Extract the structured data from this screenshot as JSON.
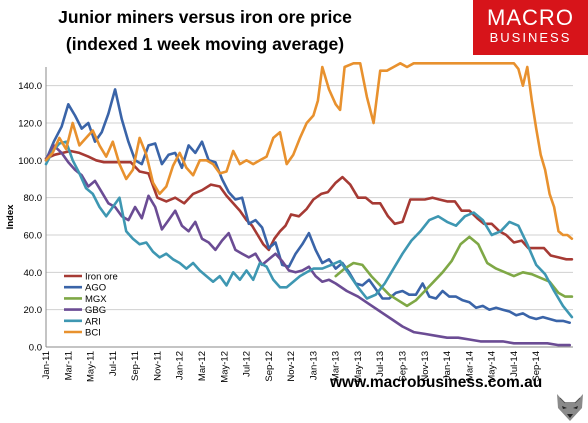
{
  "header": {
    "title_line1": "Junior miners versus iron ore price",
    "title_line2": " (indexed 1 week moving average)"
  },
  "logo": {
    "line1": "MACRO",
    "line2": "BUSINESS",
    "color": "#d7141a"
  },
  "footer": {
    "url": "www.macrobusiness.com.au"
  },
  "chart_data": {
    "type": "line",
    "title": "Junior miners versus iron ore price (indexed 1 week moving average)",
    "xlabel": "",
    "ylabel": "Index",
    "ylim": [
      0,
      150
    ],
    "yticks": [
      0,
      20,
      40,
      60,
      80,
      100,
      120,
      140
    ],
    "ytick_labels": [
      "0.0",
      "20.0",
      "40.0",
      "60.0",
      "80.0",
      "100.0",
      "120.0",
      "140.0"
    ],
    "xlim": [
      0,
      47.3
    ],
    "xticks": [
      0,
      2,
      4,
      6,
      8,
      10,
      12,
      14,
      16,
      18,
      20,
      22,
      24,
      26,
      28,
      30,
      32,
      34,
      36,
      38,
      40,
      42,
      44
    ],
    "xtick_labels": [
      "Jan-11",
      "Mar-11",
      "May-11",
      "Jul-11",
      "Sep-11",
      "Nov-11",
      "Jan-12",
      "Mar-12",
      "May-12",
      "Jul-12",
      "Sep-12",
      "Nov-12",
      "Jan-13",
      "Mar-13",
      "May-13",
      "Jul-13",
      "Sep-13",
      "Nov-13",
      "Jan-14",
      "Mar-14",
      "May-14",
      "Jul-14",
      "Sep-14"
    ],
    "grid": "horizontal",
    "legend_position": "lower-left",
    "series": [
      {
        "name": "Iron ore",
        "color": "#a63a34",
        "x": [
          0,
          0.8,
          1.5,
          2.2,
          3,
          3.8,
          4.5,
          5.2,
          6,
          6.8,
          7.6,
          8.4,
          9.2,
          10,
          10.8,
          11.6,
          12.4,
          13.2,
          14,
          14.8,
          15.6,
          16.2,
          16.8,
          17.4,
          18,
          18.5,
          19,
          19.5,
          20,
          20.5,
          21,
          21.5,
          22,
          22.7,
          23.4,
          24,
          24.7,
          25.3,
          26,
          26.6,
          27.3,
          28,
          28.7,
          29.3,
          30,
          30.7,
          31.3,
          32,
          32.7,
          33.3,
          34,
          34.7,
          35.3,
          36,
          36.7,
          37.3,
          38,
          38.7,
          39.3,
          40,
          40.7,
          41.3,
          42,
          42.7,
          43.3,
          44,
          44.7,
          45.3,
          46,
          46.7,
          47.2
        ],
        "y": [
          101,
          103,
          104,
          105,
          104,
          102,
          100,
          99,
          99,
          99,
          99,
          94,
          93,
          80,
          78,
          80,
          77,
          82,
          84,
          87,
          86,
          81,
          77,
          73,
          68,
          65,
          60,
          55,
          52,
          58,
          62,
          65,
          71,
          70,
          74,
          79,
          82,
          83,
          88,
          91,
          87,
          80,
          80,
          77,
          77,
          70,
          66,
          67,
          79,
          79,
          79,
          80,
          79,
          78,
          78,
          73,
          73,
          69,
          66,
          66,
          62,
          60,
          56,
          57,
          53,
          53,
          53,
          49,
          48,
          47,
          47
        ]
      },
      {
        "name": "AGO",
        "color": "#3a64a8",
        "x": [
          0,
          0.7,
          1.4,
          2,
          2.6,
          3.2,
          3.8,
          4.4,
          5,
          5.6,
          6.2,
          6.8,
          7.4,
          8,
          8.6,
          9.2,
          9.8,
          10.4,
          11,
          11.6,
          12.2,
          12.8,
          13.4,
          14,
          14.6,
          15.2,
          15.8,
          16.4,
          17,
          17.6,
          18.2,
          18.8,
          19.4,
          20,
          20.6,
          21.2,
          21.8,
          22.4,
          23,
          23.6,
          24.2,
          24.8,
          25.4,
          26,
          26.6,
          27.2,
          27.8,
          28.4,
          29,
          29.6,
          30.2,
          30.8,
          31.4,
          32,
          32.6,
          33.2,
          33.8,
          34.4,
          35,
          35.6,
          36.2,
          36.8,
          37.4,
          38,
          38.6,
          39.2,
          39.8,
          40.4,
          41,
          41.6,
          42.2,
          42.8,
          43.4,
          44,
          44.6,
          45.2,
          45.8,
          46.4,
          47
        ],
        "y": [
          100,
          110,
          118,
          130,
          124,
          117,
          120,
          110,
          115,
          125,
          138,
          122,
          110,
          100,
          98,
          108,
          109,
          98,
          103,
          104,
          96,
          108,
          104,
          110,
          100,
          99,
          90,
          83,
          79,
          80,
          66,
          68,
          64,
          53,
          56,
          44,
          43,
          50,
          55,
          61,
          52,
          45,
          47,
          42,
          45,
          40,
          34,
          33,
          36,
          31,
          26,
          26,
          29,
          30,
          28,
          28,
          34,
          27,
          26,
          30,
          27,
          27,
          25,
          24,
          21,
          22,
          20,
          21,
          20,
          19,
          17,
          18,
          16,
          15,
          16,
          15,
          14,
          14,
          13
        ]
      },
      {
        "name": "MGX",
        "color": "#7fa846",
        "x": [
          26,
          26.8,
          27.6,
          28.4,
          29.2,
          30,
          30.8,
          31.6,
          32.4,
          33.2,
          34,
          34.8,
          35.6,
          36.4,
          37.2,
          38,
          38.8,
          39.6,
          40.4,
          41.2,
          42,
          42.8,
          43.6,
          44.4,
          45.2,
          46,
          46.6,
          47.2
        ],
        "y": [
          38,
          42,
          45,
          44,
          38,
          33,
          28,
          25,
          22,
          25,
          30,
          35,
          40,
          46,
          55,
          59,
          55,
          45,
          42,
          40,
          38,
          40,
          39,
          37,
          35,
          29,
          27,
          27
        ]
      },
      {
        "name": "GBG",
        "color": "#6b4c94",
        "x": [
          0,
          0.7,
          1.4,
          2,
          2.6,
          3.2,
          3.8,
          4.4,
          5,
          5.6,
          6.2,
          6.8,
          7.4,
          8,
          8.6,
          9.2,
          9.8,
          10.4,
          11,
          11.6,
          12.2,
          12.8,
          13.4,
          14,
          14.6,
          15.2,
          15.8,
          16.4,
          17,
          17.6,
          18.2,
          18.8,
          19.4,
          20,
          20.6,
          21.2,
          21.8,
          22.4,
          23,
          23.6,
          24.2,
          24.8,
          25.4,
          26,
          27,
          28,
          29,
          30,
          31,
          32,
          33,
          34,
          35,
          36,
          37,
          38,
          39,
          40,
          41,
          42,
          43,
          44,
          45,
          46,
          47
        ],
        "y": [
          100,
          108,
          104,
          99,
          95,
          92,
          86,
          89,
          83,
          77,
          75,
          70,
          68,
          75,
          69,
          81,
          75,
          63,
          68,
          73,
          65,
          62,
          67,
          58,
          56,
          52,
          57,
          61,
          52,
          50,
          48,
          50,
          44,
          47,
          50,
          46,
          41,
          40,
          41,
          43,
          38,
          35,
          36,
          34,
          30,
          27,
          23,
          19,
          15,
          11,
          8,
          7,
          6,
          5,
          5,
          4,
          3,
          3,
          3,
          2,
          2,
          2,
          2,
          1,
          1
        ]
      },
      {
        "name": "ARI",
        "color": "#3e97b2",
        "x": [
          0,
          0.6,
          1.2,
          1.8,
          2.4,
          3,
          3.6,
          4.2,
          4.8,
          5.4,
          6,
          6.6,
          7.2,
          7.8,
          8.4,
          9,
          9.6,
          10.2,
          10.8,
          11.4,
          12,
          12.6,
          13.2,
          13.8,
          14.4,
          15,
          15.6,
          16.2,
          16.8,
          17.4,
          18,
          18.6,
          19.2,
          19.8,
          20.4,
          21,
          21.6,
          22.2,
          22.8,
          23.4,
          24,
          24.8,
          25.6,
          26.4,
          27.2,
          28,
          28.8,
          29.6,
          30.4,
          31.2,
          32,
          32.8,
          33.6,
          34.4,
          35.2,
          36,
          36.8,
          37.6,
          38.4,
          39.2,
          40,
          40.8,
          41.6,
          42.4,
          43.2,
          44,
          44.8,
          45.6,
          46.4,
          47.2
        ],
        "y": [
          98,
          105,
          109,
          110,
          100,
          93,
          85,
          82,
          75,
          70,
          75,
          80,
          62,
          58,
          55,
          56,
          51,
          48,
          50,
          47,
          45,
          42,
          45,
          41,
          38,
          35,
          38,
          33,
          40,
          36,
          41,
          36,
          45,
          43,
          36,
          32,
          32,
          35,
          38,
          40,
          42,
          42,
          44,
          46,
          39,
          32,
          26,
          28,
          34,
          42,
          50,
          57,
          62,
          68,
          70,
          67,
          65,
          70,
          72,
          68,
          60,
          62,
          67,
          65,
          55,
          44,
          39,
          30,
          22,
          16
        ]
      },
      {
        "name": "BCI",
        "color": "#e8912e",
        "x": [
          0,
          0.6,
          1.2,
          1.8,
          2.4,
          3,
          3.6,
          4.2,
          4.8,
          5.4,
          6,
          6.6,
          7.2,
          7.8,
          8.4,
          9,
          9.6,
          10.2,
          10.8,
          11.4,
          12,
          12.6,
          13.2,
          13.8,
          14.4,
          15,
          15.6,
          16.2,
          16.8,
          17.4,
          18,
          18.6,
          19.2,
          19.8,
          20.4,
          21,
          21.6,
          22.2,
          22.8,
          23.4,
          24,
          24.4,
          24.8,
          25.4,
          26,
          26.4,
          26.8,
          27.6,
          28.2,
          28.8,
          29.4,
          30,
          30.6,
          31.2,
          31.8,
          32.4,
          33,
          33.6,
          34.2,
          34.8,
          35.4,
          36,
          36.6,
          37.2,
          37.8,
          38.4,
          39,
          39.6,
          40.2,
          40.8,
          41.4,
          42,
          42.4,
          42.8,
          43.2,
          43.6,
          44,
          44.4,
          44.8,
          45.2,
          45.6,
          46,
          46.4,
          46.8,
          47.2
        ],
        "y": [
          100,
          104,
          112,
          106,
          120,
          108,
          112,
          116,
          108,
          102,
          110,
          98,
          90,
          95,
          112,
          103,
          88,
          82,
          86,
          97,
          104,
          96,
          92,
          100,
          100,
          98,
          93,
          94,
          105,
          98,
          100,
          98,
          100,
          102,
          112,
          115,
          98,
          103,
          112,
          120,
          124,
          132,
          150,
          138,
          130,
          127,
          150,
          152,
          152,
          134,
          120,
          148,
          148,
          150,
          152,
          150,
          152,
          152,
          152,
          152,
          152,
          152,
          152,
          152,
          152,
          152,
          152,
          152,
          152,
          152,
          152,
          152,
          149,
          140,
          150,
          132,
          117,
          103,
          95,
          82,
          75,
          62,
          60,
          60,
          58
        ]
      }
    ]
  }
}
